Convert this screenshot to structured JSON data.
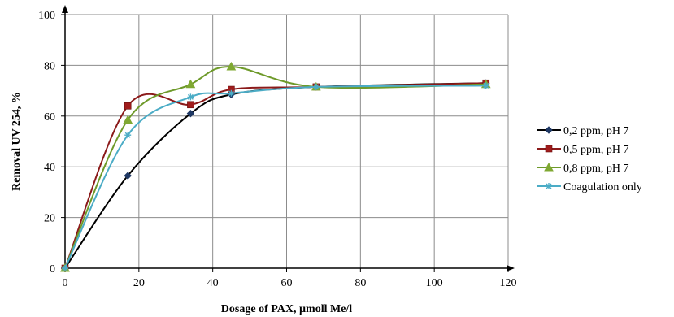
{
  "chart_data": {
    "type": "line",
    "title": "",
    "xlabel": "Dosage of PAX, µmoll Me/l",
    "ylabel": "Removal UV 254, %",
    "xlim": [
      0,
      120
    ],
    "ylim": [
      0,
      100
    ],
    "x_ticks": [
      "0",
      "20",
      "40",
      "60",
      "80",
      "100",
      "120"
    ],
    "y_ticks": [
      "0",
      "20",
      "40",
      "60",
      "80",
      "100"
    ],
    "grid": true,
    "legend_position": "right",
    "series": [
      {
        "name": "0,2 ppm, pH 7",
        "color": "#1f3864",
        "line_color": "#000000",
        "marker": "diamond",
        "x": [
          0,
          17,
          34,
          45,
          68,
          114
        ],
        "y": [
          0,
          36.5,
          61,
          68.5,
          71.5,
          73
        ]
      },
      {
        "name": "0,5 ppm, pH 7",
        "color": "#a01c1c",
        "line_color": "#8b1a1a",
        "marker": "square",
        "x": [
          0,
          17,
          34,
          45,
          68,
          114
        ],
        "y": [
          0,
          64,
          64.5,
          70.5,
          71.5,
          73
        ]
      },
      {
        "name": "0,8 ppm, pH 7",
        "color": "#7fa832",
        "line_color": "#6e9a2a",
        "marker": "triangle",
        "x": [
          0,
          17,
          34,
          45,
          68,
          114
        ],
        "y": [
          0,
          58.5,
          72.5,
          79.5,
          71.5,
          72.5
        ]
      },
      {
        "name": "Coagulation only",
        "color": "#4bacc6",
        "line_color": "#4bacc6",
        "marker": "star",
        "x": [
          0,
          17,
          34,
          45,
          68,
          114
        ],
        "y": [
          0,
          52.5,
          67.5,
          69,
          71.5,
          72
        ]
      }
    ]
  }
}
